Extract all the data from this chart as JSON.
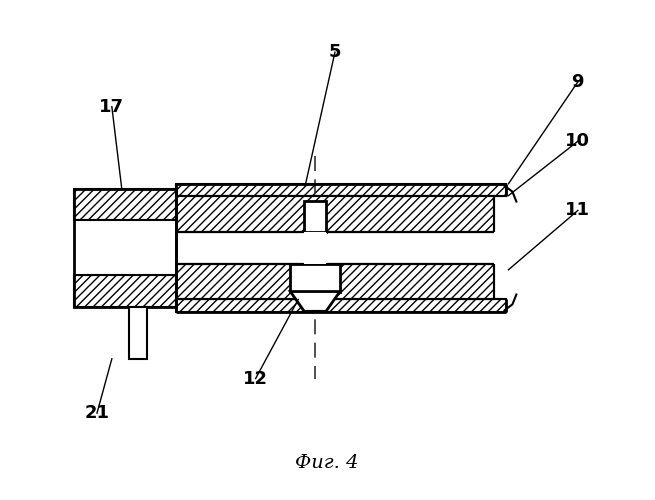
{
  "title": "Фиг. 4",
  "background_color": "#ffffff",
  "line_color": "#000000",
  "label_fontsize": 13,
  "title_fontsize": 14
}
